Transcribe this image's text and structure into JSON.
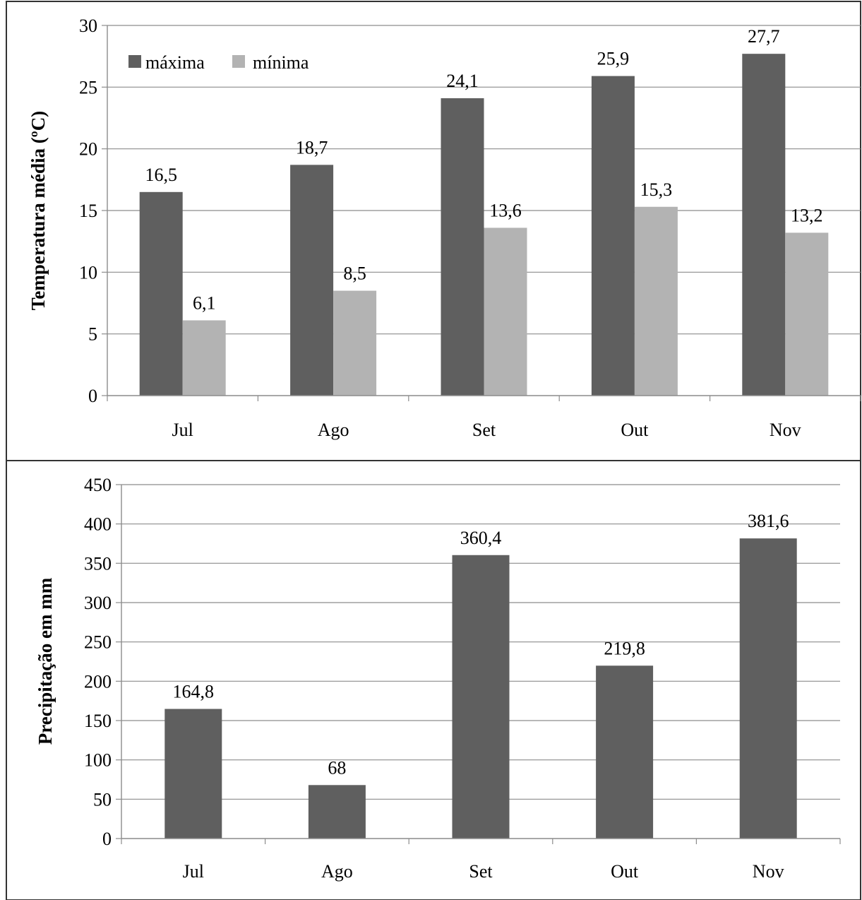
{
  "chart_data": [
    {
      "type": "bar",
      "categories": [
        "Jul",
        "Ago",
        "Set",
        "Out",
        "Nov"
      ],
      "series": [
        {
          "name": "máxima",
          "values": [
            16.5,
            18.7,
            24.1,
            25.9,
            27.7
          ],
          "labels": [
            "16,5",
            "18,7",
            "24,1",
            "25,9",
            "27,7"
          ],
          "color": "#5f5f5f"
        },
        {
          "name": "mínima",
          "values": [
            6.1,
            8.5,
            13.6,
            15.3,
            13.2
          ],
          "labels": [
            "6,1",
            "8,5",
            "13,6",
            "15,3",
            "13,2"
          ],
          "color": "#b3b3b3"
        }
      ],
      "ylabel": "Temperatura média (ºC)",
      "ylim": [
        0,
        30
      ],
      "yticks": [
        0,
        5,
        10,
        15,
        20,
        25,
        30
      ],
      "grid": true,
      "legend": "top-left"
    },
    {
      "type": "bar",
      "categories": [
        "Jul",
        "Ago",
        "Set",
        "Out",
        "Nov"
      ],
      "series": [
        {
          "values": [
            164.8,
            68,
            360.4,
            219.8,
            381.6
          ],
          "labels": [
            "164,8",
            "68",
            "360,4",
            "219,8",
            "381,6"
          ],
          "color": "#5f5f5f"
        }
      ],
      "ylabel": "Precipitação em mm",
      "ylim": [
        0,
        450
      ],
      "yticks": [
        0,
        50,
        100,
        150,
        200,
        250,
        300,
        350,
        400,
        450
      ],
      "grid": true
    }
  ]
}
